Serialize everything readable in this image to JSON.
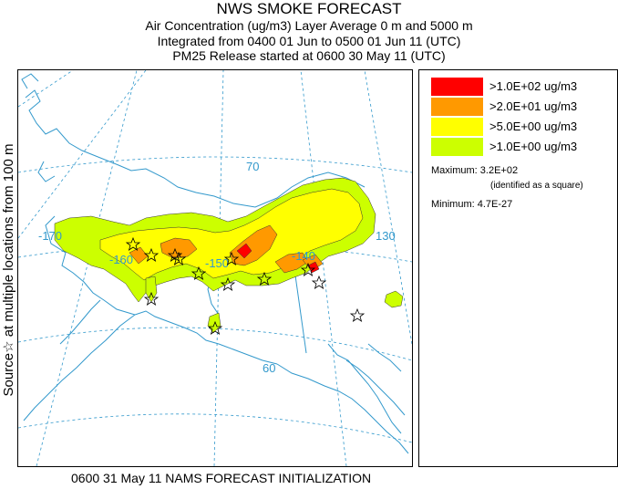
{
  "header": {
    "title": "NWS SMOKE FORECAST",
    "line2": "Air Concentration (ug/m3) Layer Average     0 m and  5000 m",
    "line3": "Integrated from 0400 01 Jun to 0500 01 Jun 11 (UTC)",
    "line4": "PM25 Release started at 0600 30 May 11 (UTC)"
  },
  "side_label": "Source☆  at multiple locations   from   100 m",
  "map": {
    "grid_labels": {
      "lat_70": "70",
      "lat_60": "60",
      "lon_170": "-170",
      "lon_160": "-160",
      "lon_150": "-150",
      "lon_140": "-140",
      "lon_130": "130"
    },
    "colors": {
      "level_1": "#ff0000",
      "level_2": "#ff9900",
      "level_3": "#ffff00",
      "level_4": "#ccff00",
      "grid": "#3399cc",
      "coast": "#3399cc"
    }
  },
  "legend": {
    "items": [
      {
        "label": ">1.0E+02 ug/m3",
        "color": "#ff0000"
      },
      {
        "label": ">2.0E+01 ug/m3",
        "color": "#ff9900"
      },
      {
        "label": ">5.0E+00 ug/m3",
        "color": "#ffff00"
      },
      {
        "label": ">1.0E+00 ug/m3",
        "color": "#ccff00"
      }
    ],
    "maximum": "Maximum: 3.2E+02",
    "maximum_note": "(identified as a square)",
    "minimum": "Minimum: 4.7E-27"
  },
  "footer": "0600 31 May 11 NAMS FORECAST INITIALIZATION"
}
